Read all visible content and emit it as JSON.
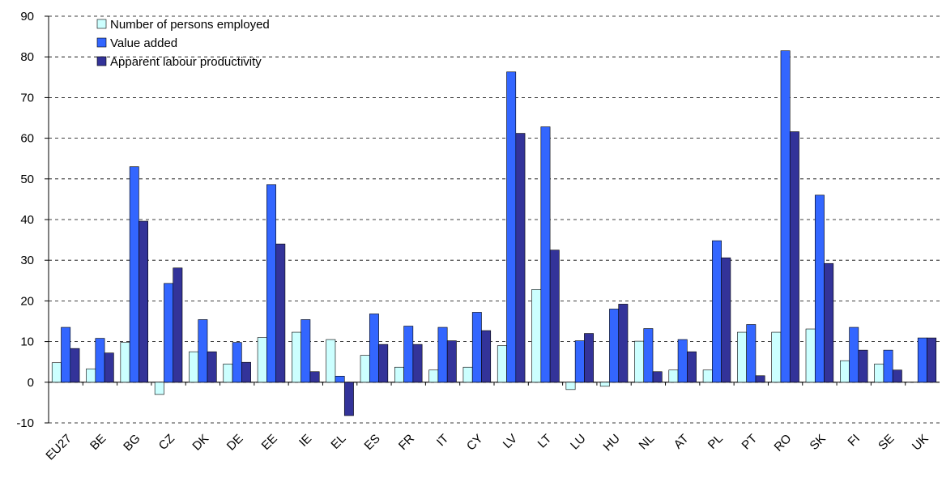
{
  "chart_data": {
    "type": "bar",
    "categories": [
      "EU27",
      "BE",
      "BG",
      "CZ",
      "DK",
      "DE",
      "EE",
      "IE",
      "EL",
      "ES",
      "FR",
      "IT",
      "CY",
      "LV",
      "LT",
      "LU",
      "HU",
      "NL",
      "AT",
      "PL",
      "PT",
      "RO",
      "SK",
      "FI",
      "SE",
      "UK"
    ],
    "series": [
      {
        "name": "Number of persons employed",
        "color": "#ccffff",
        "values": [
          4.8,
          3.3,
          9.8,
          -3,
          7.5,
          4.5,
          11,
          12.3,
          10.5,
          6.6,
          3.7,
          3,
          3.7,
          9,
          22.8,
          -1.8,
          -1,
          10.1,
          3,
          3,
          12.3,
          12.3,
          13.1,
          5.3,
          4.5,
          null
        ]
      },
      {
        "name": "Value added",
        "color": "#3366ff",
        "values": [
          13.5,
          10.8,
          53,
          24.3,
          15.4,
          9.8,
          48.6,
          15.4,
          1.5,
          16.8,
          13.8,
          13.5,
          17.2,
          76.3,
          62.8,
          10.2,
          18,
          13.2,
          10.5,
          34.8,
          14.2,
          81.5,
          46,
          13.5,
          7.9,
          10.9
        ]
      },
      {
        "name": "Apparent labour productivity",
        "color": "#333399",
        "values": [
          8.3,
          7.2,
          39.6,
          28.1,
          7.5,
          4.9,
          34,
          2.6,
          -8.2,
          9.3,
          9.3,
          10.2,
          12.7,
          61.2,
          32.5,
          12,
          19.2,
          2.6,
          7.5,
          30.6,
          1.6,
          61.6,
          29.2,
          7.9,
          3,
          10.9
        ]
      }
    ],
    "ylim": [
      -10,
      90
    ],
    "yticks": [
      -10,
      0,
      10,
      20,
      30,
      40,
      50,
      60,
      70,
      80,
      90
    ],
    "grid": true,
    "legend": "top-left"
  }
}
